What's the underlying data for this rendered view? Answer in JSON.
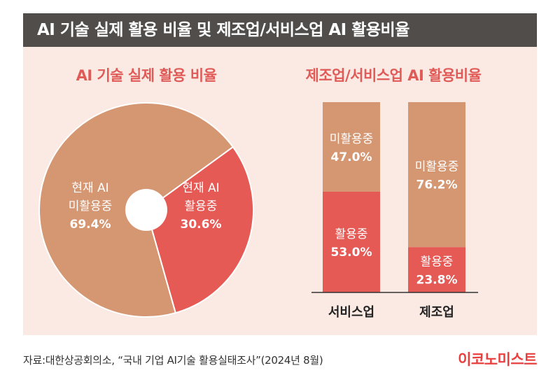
{
  "title": "AI 기술 실제 활용 비율 및 제조업/서비스업 AI 활용비율",
  "source": "자료:대한상공회의소, “국내 기업 AI기술 활용실태조사”(2024년 8월)",
  "brand": "이코노미스트",
  "colors": {
    "not_using": "#d59672",
    "using": "#e65a56",
    "background": "#fbeae3",
    "title_bar": "#504d4a"
  },
  "chart_data": [
    {
      "type": "pie",
      "title": "AI 기술 실제 활용 비율",
      "unit": "%",
      "slices": [
        {
          "label": "현재 AI 활용중",
          "label_lines": [
            "현재 AI",
            "활용중"
          ],
          "value": 30.6,
          "value_text": "30.6%",
          "color": "#e65a56"
        },
        {
          "label": "현재 AI 미활용중",
          "label_lines": [
            "현재 AI",
            "미활용중"
          ],
          "value": 69.4,
          "value_text": "69.4%",
          "color": "#d59672"
        }
      ]
    },
    {
      "type": "bar",
      "stacked": true,
      "title": "제조업/서비스업 AI 활용비율",
      "unit": "%",
      "categories": [
        "서비스업",
        "제조업"
      ],
      "ylim": [
        0,
        100
      ],
      "series": [
        {
          "name": "활용중",
          "values": [
            53.0,
            23.8
          ],
          "value_texts": [
            "53.0%",
            "23.8%"
          ],
          "color": "#e65a56"
        },
        {
          "name": "미활용중",
          "values": [
            47.0,
            76.2
          ],
          "value_texts": [
            "47.0%",
            "76.2%"
          ],
          "color": "#d59672"
        }
      ]
    }
  ]
}
